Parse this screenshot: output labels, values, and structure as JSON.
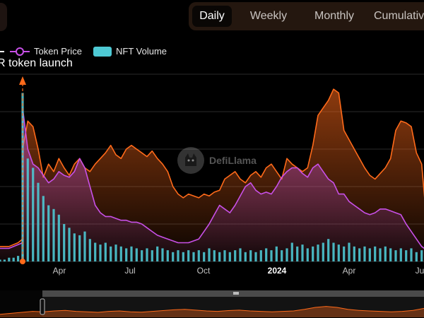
{
  "tabs": [
    {
      "label": "Daily",
      "active": true
    },
    {
      "label": "Weekly",
      "active": false
    },
    {
      "label": "Monthly",
      "active": false
    },
    {
      "label": "Cumulative",
      "active": false
    }
  ],
  "legend": [
    {
      "name": "Token Price",
      "color": "#c850e8",
      "marker": "line-dot"
    },
    {
      "name": "NFT Volume",
      "color": "#4ec9d4",
      "marker": "box"
    }
  ],
  "annotation": {
    "text": "R token launch",
    "color": "#ff6a1a"
  },
  "watermark": {
    "text": "DefiLlama",
    "icon": "llama-logo-icon"
  },
  "colors": {
    "background": "#000000",
    "orange": "#ff6a1a",
    "purple": "#c850e8",
    "teal": "#4ec9d4",
    "grid": "#2a2a2a"
  },
  "chart_data": {
    "type": "area",
    "x_tick_labels": [
      "Apr",
      "Jul",
      "Oct",
      "2024",
      "Apr",
      "Ju"
    ],
    "grid": true,
    "legend_position": "top-left",
    "ylim": [
      0,
      1
    ],
    "series": [
      {
        "name": "",
        "color": "#ff6a1a",
        "style": "area",
        "values": [
          0.08,
          0.08,
          0.08,
          0.09,
          0.1,
          0.12,
          0.6,
          0.75,
          0.72,
          0.6,
          0.45,
          0.52,
          0.48,
          0.55,
          0.5,
          0.46,
          0.52,
          0.55,
          0.5,
          0.48,
          0.52,
          0.55,
          0.58,
          0.62,
          0.57,
          0.55,
          0.6,
          0.62,
          0.6,
          0.58,
          0.56,
          0.59,
          0.55,
          0.52,
          0.48,
          0.4,
          0.36,
          0.34,
          0.36,
          0.35,
          0.34,
          0.36,
          0.35,
          0.37,
          0.38,
          0.44,
          0.46,
          0.48,
          0.44,
          0.42,
          0.46,
          0.48,
          0.45,
          0.5,
          0.52,
          0.48,
          0.44,
          0.55,
          0.52,
          0.5,
          0.48,
          0.5,
          0.62,
          0.78,
          0.82,
          0.86,
          0.92,
          0.9,
          0.7,
          0.65,
          0.6,
          0.55,
          0.5,
          0.46,
          0.44,
          0.47,
          0.5,
          0.55,
          0.7,
          0.75,
          0.74,
          0.72,
          0.58,
          0.52,
          0.2
        ]
      },
      {
        "name": "Token Price",
        "color": "#c850e8",
        "style": "line-gradient",
        "values": [
          0.07,
          0.07,
          0.07,
          0.08,
          0.09,
          0.1,
          0.82,
          0.6,
          0.52,
          0.5,
          0.46,
          0.42,
          0.44,
          0.48,
          0.46,
          0.45,
          0.48,
          0.55,
          0.5,
          0.4,
          0.3,
          0.26,
          0.24,
          0.24,
          0.23,
          0.22,
          0.22,
          0.21,
          0.21,
          0.2,
          0.18,
          0.16,
          0.14,
          0.13,
          0.12,
          0.11,
          0.1,
          0.1,
          0.1,
          0.11,
          0.12,
          0.16,
          0.2,
          0.25,
          0.3,
          0.28,
          0.26,
          0.3,
          0.35,
          0.4,
          0.42,
          0.38,
          0.36,
          0.37,
          0.36,
          0.4,
          0.45,
          0.48,
          0.5,
          0.5,
          0.47,
          0.45,
          0.5,
          0.52,
          0.48,
          0.44,
          0.42,
          0.36,
          0.36,
          0.32,
          0.3,
          0.28,
          0.26,
          0.25,
          0.26,
          0.28,
          0.28,
          0.27,
          0.26,
          0.25,
          0.2,
          0.16,
          0.12,
          0.08,
          0.06
        ]
      },
      {
        "name": "NFT Volume",
        "color": "#4ec9d4",
        "style": "bars",
        "values": [
          0.01,
          0.01,
          0.02,
          0.02,
          0.03,
          0.04,
          0.9,
          0.55,
          0.5,
          0.42,
          0.35,
          0.3,
          0.28,
          0.25,
          0.2,
          0.18,
          0.15,
          0.14,
          0.16,
          0.12,
          0.1,
          0.09,
          0.1,
          0.08,
          0.09,
          0.08,
          0.07,
          0.08,
          0.07,
          0.06,
          0.07,
          0.06,
          0.08,
          0.07,
          0.06,
          0.05,
          0.06,
          0.05,
          0.06,
          0.05,
          0.06,
          0.05,
          0.07,
          0.06,
          0.05,
          0.06,
          0.05,
          0.06,
          0.07,
          0.05,
          0.06,
          0.05,
          0.06,
          0.07,
          0.06,
          0.08,
          0.06,
          0.07,
          0.1,
          0.08,
          0.09,
          0.07,
          0.08,
          0.09,
          0.1,
          0.12,
          0.1,
          0.09,
          0.08,
          0.1,
          0.08,
          0.07,
          0.08,
          0.07,
          0.08,
          0.07,
          0.08,
          0.07,
          0.06,
          0.07,
          0.06,
          0.07,
          0.05,
          0.06,
          0.06
        ]
      }
    ],
    "brush": {
      "start": 0.1,
      "end": 1.0,
      "series_values": [
        0.15,
        0.2,
        0.25,
        0.3,
        0.28,
        0.32,
        0.35,
        0.3,
        0.28,
        0.25,
        0.3,
        0.32,
        0.28,
        0.26,
        0.3,
        0.34,
        0.38,
        0.4,
        0.36,
        0.32,
        0.3,
        0.34,
        0.36,
        0.32,
        0.3,
        0.28,
        0.3,
        0.32,
        0.4,
        0.5,
        0.55,
        0.5,
        0.4,
        0.35,
        0.32,
        0.3,
        0.28,
        0.3,
        0.35,
        0.45
      ]
    }
  }
}
